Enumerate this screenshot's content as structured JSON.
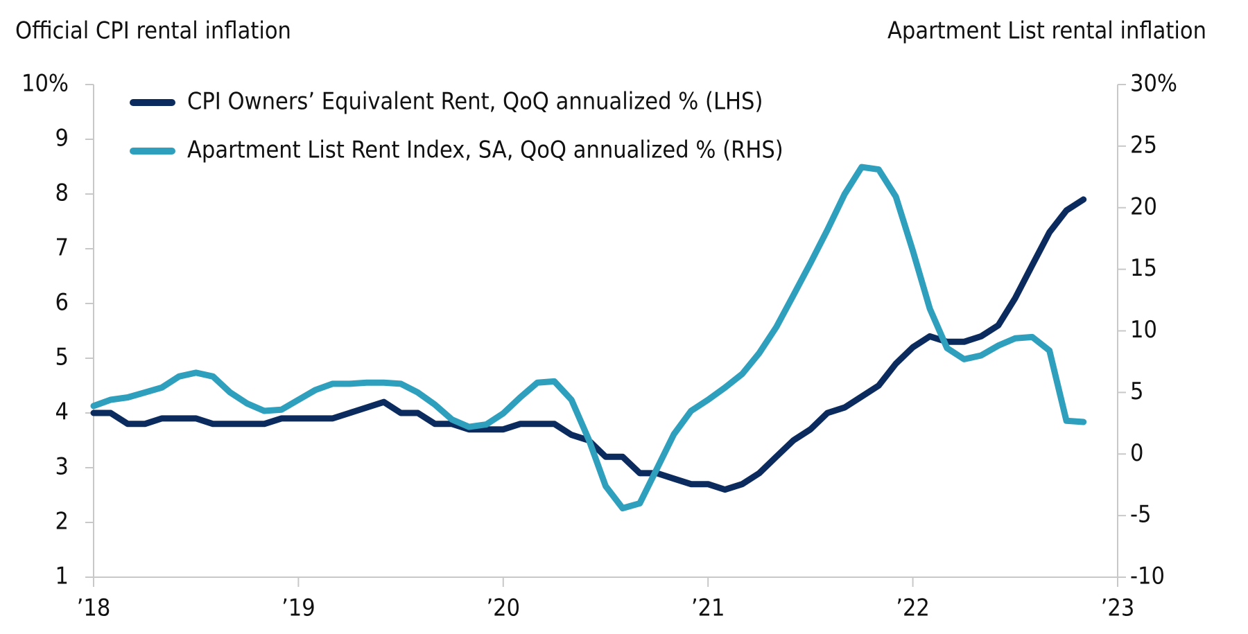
{
  "chart_data": {
    "type": "line",
    "y_label": "Official CPI rental inflation",
    "y2_label": "Apartment List rental inflation",
    "x": [
      2018,
      2018.083,
      2018.167,
      2018.25,
      2018.333,
      2018.417,
      2018.5,
      2018.583,
      2018.667,
      2018.75,
      2018.833,
      2018.917,
      2019,
      2019.083,
      2019.167,
      2019.25,
      2019.333,
      2019.417,
      2019.5,
      2019.583,
      2019.667,
      2019.75,
      2019.833,
      2019.917,
      2020,
      2020.083,
      2020.167,
      2020.25,
      2020.333,
      2020.417,
      2020.5,
      2020.583,
      2020.667,
      2020.75,
      2020.833,
      2020.917,
      2021,
      2021.083,
      2021.167,
      2021.25,
      2021.333,
      2021.417,
      2021.5,
      2021.583,
      2021.667,
      2021.75,
      2021.833,
      2021.917,
      2022,
      2022.083,
      2022.167,
      2022.25,
      2022.333,
      2022.417,
      2022.5,
      2022.583,
      2022.667,
      2022.75,
      2022.833
    ],
    "series": [
      {
        "name": "CPI Owners’ Equivalent Rent, QoQ annualized % (LHS)",
        "color": "#0b2b5e",
        "axis": "y",
        "values": [
          4.0,
          4.0,
          3.8,
          3.8,
          3.9,
          3.9,
          3.9,
          3.8,
          3.8,
          3.8,
          3.8,
          3.9,
          3.9,
          3.9,
          3.9,
          4.0,
          4.1,
          4.2,
          4.0,
          4.0,
          3.8,
          3.8,
          3.7,
          3.7,
          3.7,
          3.8,
          3.8,
          3.8,
          3.6,
          3.5,
          3.2,
          3.2,
          2.9,
          2.9,
          2.8,
          2.7,
          2.7,
          2.6,
          2.7,
          2.9,
          3.2,
          3.5,
          3.7,
          4.0,
          4.1,
          4.3,
          4.5,
          4.9,
          5.2,
          5.4,
          5.3,
          5.3,
          5.4,
          5.6,
          6.1,
          6.7,
          7.3,
          7.7,
          7.9
        ]
      },
      {
        "name": "Apartment List Rent Index, SA, QoQ annualized % (RHS)",
        "color": "#2e9fbc",
        "axis": "y2",
        "values": [
          3.9,
          4.4,
          4.6,
          5.0,
          5.4,
          6.3,
          6.6,
          6.3,
          5.0,
          4.1,
          3.5,
          3.6,
          4.4,
          5.2,
          5.7,
          5.7,
          5.8,
          5.8,
          5.7,
          5.0,
          4.0,
          2.8,
          2.2,
          2.4,
          3.3,
          4.6,
          5.8,
          5.9,
          4.4,
          1.2,
          -2.6,
          -4.4,
          -4.0,
          -1.2,
          1.6,
          3.5,
          4.4,
          5.4,
          6.5,
          8.2,
          10.3,
          12.9,
          15.5,
          18.2,
          21.1,
          23.3,
          23.1,
          20.9,
          16.5,
          11.8,
          8.6,
          7.7,
          8.0,
          8.8,
          9.4,
          9.5,
          8.4,
          2.7,
          2.6
        ]
      }
    ],
    "xlim": [
      2018,
      2023
    ],
    "xticks": [
      {
        "value": 2018,
        "label": "’18"
      },
      {
        "value": 2019,
        "label": "’19"
      },
      {
        "value": 2020,
        "label": "’20"
      },
      {
        "value": 2021,
        "label": "’21"
      },
      {
        "value": 2022,
        "label": "’22"
      },
      {
        "value": 2023,
        "label": "’23"
      }
    ],
    "ylim": [
      1,
      10
    ],
    "yticks": [
      1,
      2,
      3,
      4,
      5,
      6,
      7,
      8,
      9,
      {
        "value": 10,
        "label": "10%"
      }
    ],
    "y2lim": [
      -10,
      30
    ],
    "y2ticks": [
      -10,
      -5,
      0,
      5,
      10,
      15,
      20,
      25,
      {
        "value": 30,
        "label": "30%"
      }
    ],
    "grid": false,
    "legend": "upper left"
  }
}
